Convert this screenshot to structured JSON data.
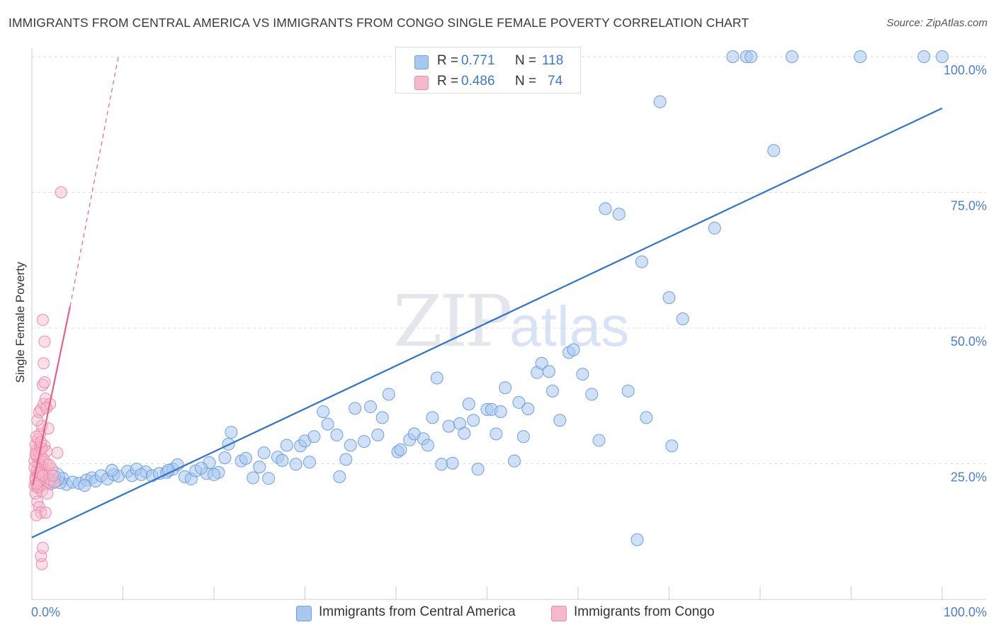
{
  "title": "IMMIGRANTS FROM CENTRAL AMERICA VS IMMIGRANTS FROM CONGO SINGLE FEMALE POVERTY CORRELATION CHART",
  "source": "Source: ZipAtlas.com",
  "watermark": {
    "zip": "ZIP",
    "atlas": "atlas"
  },
  "legend_top": [
    {
      "r_label": "R =",
      "r_value": "0.771",
      "n_label": "N =",
      "n_value": "118"
    },
    {
      "r_label": "R =",
      "r_value": "0.486",
      "n_label": "N =",
      "n_value": "74"
    }
  ],
  "legend_bottom": [
    "Immigrants from Central America",
    "Immigrants from Congo"
  ],
  "colors": {
    "blue_fill": "#a9c8f0",
    "blue_stroke": "#6e9fe0",
    "blue_line": "#2f74d0",
    "pink_fill": "#f6b8cb",
    "pink_stroke": "#ee8aaa",
    "pink_line": "#e5608a",
    "tick_text": "#4a7fd0",
    "grid": "#dddddd"
  },
  "chart_data": {
    "type": "scatter",
    "title": "IMMIGRANTS FROM CENTRAL AMERICA VS IMMIGRANTS FROM CONGO SINGLE FEMALE POVERTY CORRELATION CHART",
    "xlabel": "",
    "ylabel": "Single Female Poverty",
    "xlim": [
      0,
      100
    ],
    "ylim": [
      0,
      100
    ],
    "x_tick_labels": [
      "0.0%",
      "100.0%"
    ],
    "y_tick_labels": [
      "25.0%",
      "50.0%",
      "75.0%",
      "100.0%"
    ],
    "y_ticks": [
      25,
      50,
      75,
      100
    ],
    "grid": "horizontal dashed",
    "legend_position": "top-center",
    "series": [
      {
        "name": "Immigrants from Central America",
        "color": "#a9c8f0",
        "points": [
          [
            1.2,
            22.5
          ],
          [
            1.6,
            22.0
          ],
          [
            2.0,
            21.3
          ],
          [
            2.5,
            21.8
          ],
          [
            3.4,
            22.3
          ],
          [
            3.8,
            21.2
          ],
          [
            4.5,
            21.6
          ],
          [
            5.2,
            21.4
          ],
          [
            6.0,
            22.0
          ],
          [
            6.6,
            22.4
          ],
          [
            7.0,
            21.8
          ],
          [
            7.6,
            22.8
          ],
          [
            8.3,
            22.2
          ],
          [
            9.0,
            23.0
          ],
          [
            9.5,
            22.7
          ],
          [
            10.5,
            23.6
          ],
          [
            11.0,
            22.8
          ],
          [
            11.5,
            24.0
          ],
          [
            12.5,
            23.5
          ],
          [
            13.2,
            22.8
          ],
          [
            14.0,
            23.2
          ],
          [
            14.8,
            23.4
          ],
          [
            15.5,
            24.0
          ],
          [
            16.0,
            24.8
          ],
          [
            16.8,
            22.6
          ],
          [
            17.5,
            22.2
          ],
          [
            18.0,
            23.7
          ],
          [
            19.2,
            23.2
          ],
          [
            19.5,
            25.2
          ],
          [
            20.5,
            23.4
          ],
          [
            21.2,
            26.1
          ],
          [
            21.6,
            28.6
          ],
          [
            21.9,
            30.8
          ],
          [
            23.0,
            25.5
          ],
          [
            23.5,
            26.0
          ],
          [
            24.3,
            22.4
          ],
          [
            25.0,
            24.4
          ],
          [
            25.5,
            27.0
          ],
          [
            26.0,
            22.3
          ],
          [
            27.0,
            26.2
          ],
          [
            27.5,
            25.6
          ],
          [
            28.0,
            28.4
          ],
          [
            29.0,
            24.9
          ],
          [
            29.5,
            28.3
          ],
          [
            30.0,
            29.2
          ],
          [
            30.5,
            25.3
          ],
          [
            31.0,
            30.0
          ],
          [
            32.0,
            34.6
          ],
          [
            32.5,
            32.3
          ],
          [
            33.5,
            30.3
          ],
          [
            33.8,
            22.6
          ],
          [
            34.5,
            25.8
          ],
          [
            35.0,
            28.4
          ],
          [
            35.5,
            35.2
          ],
          [
            36.5,
            29.1
          ],
          [
            37.2,
            35.5
          ],
          [
            38.0,
            30.3
          ],
          [
            38.5,
            33.5
          ],
          [
            39.2,
            37.8
          ],
          [
            40.2,
            27.2
          ],
          [
            40.5,
            27.6
          ],
          [
            41.5,
            29.4
          ],
          [
            42.0,
            30.5
          ],
          [
            43.0,
            29.6
          ],
          [
            43.5,
            28.4
          ],
          [
            44.0,
            33.5
          ],
          [
            44.5,
            40.8
          ],
          [
            45.0,
            24.9
          ],
          [
            45.8,
            31.9
          ],
          [
            46.2,
            25.1
          ],
          [
            47.0,
            32.4
          ],
          [
            47.5,
            30.6
          ],
          [
            48.0,
            36.0
          ],
          [
            48.5,
            33.0
          ],
          [
            49.0,
            24.0
          ],
          [
            50.0,
            35.0
          ],
          [
            50.5,
            35.0
          ],
          [
            51.0,
            30.5
          ],
          [
            51.5,
            34.6
          ],
          [
            52.0,
            39.0
          ],
          [
            53.0,
            25.5
          ],
          [
            53.5,
            36.3
          ],
          [
            54.0,
            30.0
          ],
          [
            54.5,
            35.1
          ],
          [
            55.5,
            41.8
          ],
          [
            56.0,
            43.5
          ],
          [
            56.8,
            42.0
          ],
          [
            57.2,
            38.4
          ],
          [
            58.0,
            33.0
          ],
          [
            59.0,
            45.5
          ],
          [
            59.5,
            46.0
          ],
          [
            60.5,
            41.5
          ],
          [
            61.5,
            37.8
          ],
          [
            62.3,
            29.3
          ],
          [
            63.0,
            72.0
          ],
          [
            64.5,
            71.0
          ],
          [
            65.5,
            38.4
          ],
          [
            66.5,
            11.0
          ],
          [
            67.0,
            62.2
          ],
          [
            67.5,
            33.5
          ],
          [
            69.0,
            91.7
          ],
          [
            70.0,
            55.6
          ],
          [
            70.3,
            28.3
          ],
          [
            71.5,
            51.7
          ],
          [
            75.0,
            68.4
          ],
          [
            77.0,
            100.0
          ],
          [
            78.5,
            100.0
          ],
          [
            79.0,
            100.0
          ],
          [
            81.5,
            82.7
          ],
          [
            83.5,
            100.0
          ],
          [
            91.0,
            100.0
          ],
          [
            98.0,
            100.0
          ],
          [
            2.5,
            22.7
          ],
          [
            3.1,
            21.5
          ],
          [
            5.8,
            21.0
          ],
          [
            8.8,
            23.8
          ],
          [
            12.0,
            23.0
          ],
          [
            100.0,
            100.0
          ],
          [
            15.0,
            23.8
          ],
          [
            18.6,
            24.2
          ],
          [
            20.0,
            23.0
          ]
        ],
        "fit_line": {
          "x": [
            0,
            100
          ],
          "y": [
            11.4,
            90.5
          ]
        }
      },
      {
        "name": "Immigrants from Congo",
        "color": "#f6b8cb",
        "points": [
          [
            0.3,
            21.0
          ],
          [
            0.4,
            22.5
          ],
          [
            0.5,
            23.5
          ],
          [
            0.6,
            24.0
          ],
          [
            0.7,
            25.0
          ],
          [
            0.8,
            26.0
          ],
          [
            0.5,
            27.5
          ],
          [
            0.4,
            28.5
          ],
          [
            0.6,
            20.5
          ],
          [
            0.7,
            21.5
          ],
          [
            0.9,
            22.0
          ],
          [
            1.0,
            23.0
          ],
          [
            1.1,
            24.5
          ],
          [
            0.3,
            25.5
          ],
          [
            0.5,
            26.5
          ],
          [
            0.8,
            27.0
          ],
          [
            1.2,
            21.0
          ],
          [
            1.3,
            22.5
          ],
          [
            1.4,
            24.0
          ],
          [
            0.4,
            19.5
          ],
          [
            0.6,
            18.0
          ],
          [
            0.8,
            17.0
          ],
          [
            1.0,
            16.0
          ],
          [
            0.5,
            15.5
          ],
          [
            1.5,
            23.5
          ],
          [
            1.6,
            25.0
          ],
          [
            1.8,
            21.5
          ],
          [
            2.0,
            22.0
          ],
          [
            0.7,
            29.5
          ],
          [
            0.9,
            30.5
          ],
          [
            1.1,
            32.0
          ],
          [
            0.6,
            33.0
          ],
          [
            0.8,
            34.5
          ],
          [
            1.0,
            35.0
          ],
          [
            1.3,
            36.0
          ],
          [
            1.5,
            37.0
          ],
          [
            1.2,
            39.5
          ],
          [
            1.4,
            40.0
          ],
          [
            1.3,
            43.5
          ],
          [
            1.4,
            47.5
          ],
          [
            1.2,
            51.5
          ],
          [
            3.2,
            75.0
          ],
          [
            1.1,
            6.5
          ],
          [
            1.0,
            8.0
          ],
          [
            1.2,
            9.5
          ],
          [
            2.0,
            36.0
          ],
          [
            1.6,
            35.3
          ],
          [
            2.5,
            21.5
          ],
          [
            2.2,
            24.0
          ],
          [
            2.8,
            27.0
          ],
          [
            1.5,
            16.0
          ],
          [
            1.1,
            20.0
          ],
          [
            0.9,
            28.0
          ],
          [
            0.5,
            30.0
          ],
          [
            1.8,
            31.5
          ],
          [
            0.7,
            23.0
          ],
          [
            0.9,
            24.8
          ],
          [
            1.0,
            26.3
          ],
          [
            0.4,
            22.0
          ],
          [
            0.3,
            24.3
          ],
          [
            1.4,
            28.3
          ],
          [
            1.6,
            27.3
          ],
          [
            1.7,
            19.5
          ],
          [
            0.8,
            21.8
          ],
          [
            0.6,
            20.8
          ],
          [
            1.3,
            25.8
          ],
          [
            1.9,
            24.8
          ],
          [
            1.1,
            27.8
          ],
          [
            0.4,
            26.8
          ],
          [
            0.8,
            23.3
          ],
          [
            1.2,
            22.8
          ],
          [
            0.5,
            21.3
          ],
          [
            1.0,
            29.0
          ],
          [
            2.3,
            22.8
          ]
        ],
        "fit_line": {
          "x": [
            0.1,
            4.2
          ],
          "y": [
            21.0,
            54.0
          ]
        },
        "fit_line_dashed": {
          "x": [
            4.2,
            9.5
          ],
          "y": [
            54.0,
            100.0
          ]
        }
      }
    ]
  }
}
